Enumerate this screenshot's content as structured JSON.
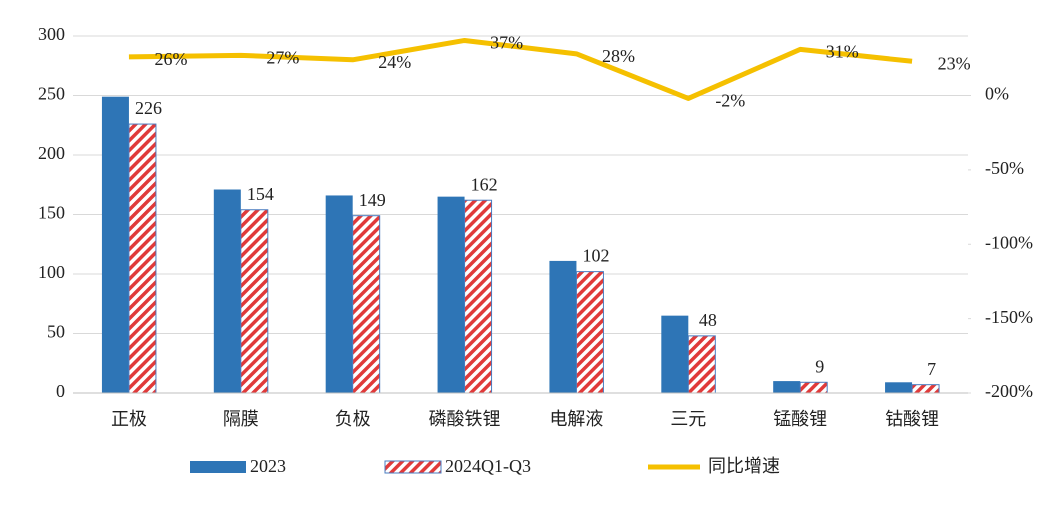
{
  "chart_data": {
    "type": "bar_line",
    "categories": [
      "正极",
      "隔膜",
      "负极",
      "磷酸铁锂",
      "电解液",
      "三元",
      "锰酸锂",
      "钴酸锂"
    ],
    "series": [
      {
        "name": "2023",
        "color": "#2e75b6",
        "values": [
          249,
          171,
          166,
          165,
          111,
          65,
          10,
          9
        ]
      },
      {
        "name": "2024Q1-Q3",
        "color": "#e03a3a",
        "values": [
          226,
          154,
          149,
          162,
          102,
          48,
          9,
          7
        ],
        "value_labels": [
          "226",
          "154",
          "149",
          "162",
          "102",
          "48",
          "9",
          "7"
        ]
      },
      {
        "name": "同比增速",
        "color": "#f5c000",
        "axis": "y2",
        "values": [
          26,
          27,
          24,
          37,
          28,
          -2,
          31,
          23
        ],
        "value_labels": [
          "26%",
          "27%",
          "24%",
          "37%",
          "28%",
          "-2%",
          "31%",
          "23%"
        ]
      }
    ],
    "ylim": [
      0,
      300
    ],
    "yticks": [
      0,
      50,
      100,
      150,
      200,
      250,
      300
    ],
    "y2lim": [
      -200,
      40
    ],
    "y2ticks": [
      {
        "value": -200,
        "label": "-200%"
      },
      {
        "value": -150,
        "label": "-150%"
      },
      {
        "value": -100,
        "label": "-100%"
      },
      {
        "value": -50,
        "label": "-50%"
      },
      {
        "value": 0,
        "label": "0%"
      }
    ],
    "grid": true,
    "legend": "bottom"
  }
}
